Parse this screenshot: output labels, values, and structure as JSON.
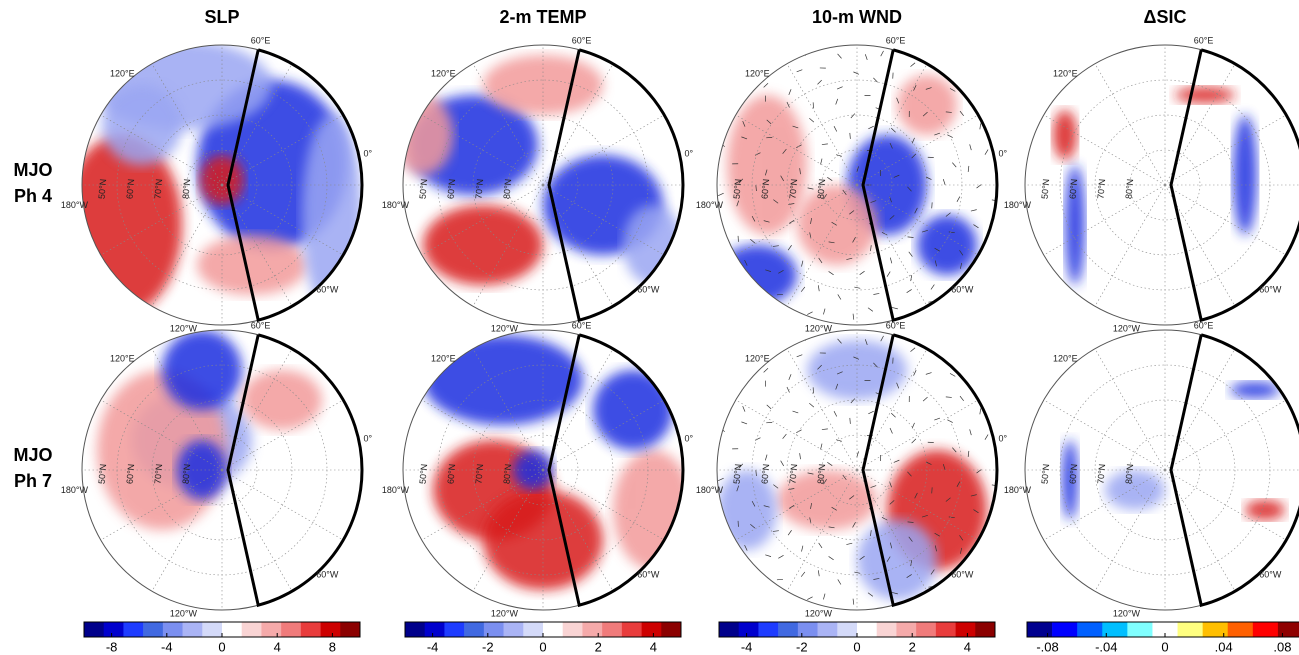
{
  "columns": [
    {
      "title": "SLP",
      "colorbar": {
        "lim": [
          -10,
          10
        ],
        "ticks": [
          -8,
          -4,
          0,
          4,
          8
        ],
        "colors": [
          "#00008b",
          "#0000cd",
          "#1e3cff",
          "#4169e1",
          "#7b8ff0",
          "#aab4f5",
          "#d4daf9",
          "#ffffff",
          "#f9d4d4",
          "#f5aaaa",
          "#f07b7b",
          "#e83c3c",
          "#cd0000",
          "#8b0000"
        ]
      }
    },
    {
      "title": "2-m TEMP",
      "colorbar": {
        "lim": [
          -5,
          5
        ],
        "ticks": [
          -4,
          -2,
          0,
          2,
          4
        ],
        "colors": [
          "#00008b",
          "#0000cd",
          "#1e3cff",
          "#4169e1",
          "#7b8ff0",
          "#aab4f5",
          "#d4daf9",
          "#ffffff",
          "#f9d4d4",
          "#f5aaaa",
          "#f07b7b",
          "#e83c3c",
          "#cd0000",
          "#8b0000"
        ]
      }
    },
    {
      "title": "10-m WND",
      "colorbar": {
        "lim": [
          -5,
          5
        ],
        "ticks": [
          -4,
          -2,
          0,
          2,
          4
        ],
        "colors": [
          "#00008b",
          "#0000cd",
          "#1e3cff",
          "#4169e1",
          "#7b8ff0",
          "#aab4f5",
          "#d4daf9",
          "#ffffff",
          "#f9d4d4",
          "#f5aaaa",
          "#f07b7b",
          "#e83c3c",
          "#cd0000",
          "#8b0000"
        ]
      }
    },
    {
      "title": "ΔSIC",
      "colorbar": {
        "lim": [
          -0.094,
          0.094
        ],
        "ticks": [
          {
            "value": -0.08,
            "label": "-.08"
          },
          {
            "value": -0.04,
            "label": "-.04"
          },
          0,
          {
            "value": 0.04,
            "label": ".04"
          },
          {
            "value": 0.08,
            "label": ".08"
          }
        ],
        "colors": [
          "#00008f",
          "#0000ff",
          "#0060ff",
          "#00bfff",
          "#80ffff",
          "#ffffff",
          "#ffff80",
          "#ffbf00",
          "#ff6000",
          "#ff0000",
          "#8f0000"
        ]
      }
    }
  ],
  "rows": [
    {
      "label": [
        "MJO",
        "Ph 4"
      ]
    },
    {
      "label": [
        "MJO",
        "Ph 7"
      ]
    }
  ],
  "map_labels": {
    "lon": [
      "60°E",
      "0°",
      "60°W",
      "120°W",
      "180°W",
      "120°E"
    ],
    "lat": [
      "50°N",
      "60°N",
      "70°N",
      "80°N"
    ]
  }
}
